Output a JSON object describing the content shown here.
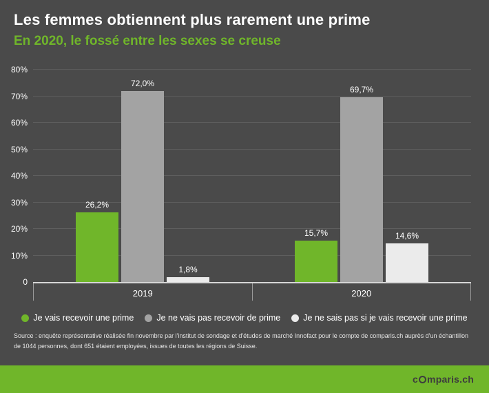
{
  "header": {
    "title": "Les femmes obtiennent plus rarement une prime",
    "subtitle": "En 2020, le fossé entre les sexes se creuse"
  },
  "colors": {
    "background": "#4a4a4a",
    "accent_green": "#70b62a",
    "bar_gray": "#a3a3a3",
    "bar_white": "#ebebeb",
    "text_white": "#ffffff"
  },
  "chart_data": {
    "type": "bar",
    "categories": [
      "2019",
      "2020"
    ],
    "series": [
      {
        "name": "Je vais recevoir une prime",
        "color": "#70b62a",
        "values": [
          26.2,
          15.7
        ],
        "labels": [
          "26,2%",
          "15,7%"
        ]
      },
      {
        "name": "Je ne vais pas recevoir de prime",
        "color": "#a3a3a3",
        "values": [
          72.0,
          69.7
        ],
        "labels": [
          "72,0%",
          "69,7%"
        ]
      },
      {
        "name": "Je ne sais pas si je vais recevoir une prime",
        "color": "#ebebeb",
        "values": [
          1.8,
          14.6
        ],
        "labels": [
          "1,8%",
          "14,6%"
        ]
      }
    ],
    "ylim": [
      0,
      80
    ],
    "yticks": [
      "0",
      "10%",
      "20%",
      "30%",
      "40%",
      "50%",
      "60%",
      "70%",
      "80%"
    ],
    "grid": true,
    "legend_position": "bottom",
    "title": "Les femmes obtiennent plus rarement une prime",
    "xlabel": "",
    "ylabel": ""
  },
  "source": "Source : enquête représentative réalisée fin novembre par l'institut de sondage et d'études de marché Innofact pour le compte de comparis.ch auprès d'un échantillon de 1044 personnes, dont 651 étaient employées, issues de toutes les régions de Suisse.",
  "footer": {
    "logo_prefix": "c",
    "logo_suffix": "mparis.ch"
  }
}
